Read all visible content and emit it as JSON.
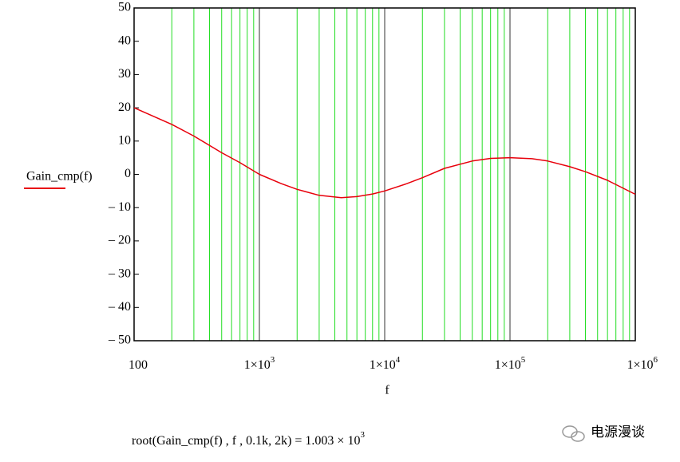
{
  "chart_data": {
    "type": "line",
    "log_x": true,
    "grid": true,
    "xlabel": "f",
    "x": [
      100,
      200,
      300,
      500,
      700,
      1000,
      1500,
      2000,
      3000,
      4500,
      6000,
      8000,
      10000,
      15000,
      20000,
      30000,
      50000,
      70000,
      100000,
      150000,
      200000,
      300000,
      400000,
      600000,
      1000000
    ],
    "series": [
      {
        "name": "Gain_cmp(f)",
        "color": "#e8000b",
        "values": [
          20,
          15,
          11.5,
          6.5,
          3.5,
          0,
          -2.8,
          -4.5,
          -6.3,
          -7,
          -6.7,
          -5.9,
          -5,
          -2.8,
          -1,
          1.8,
          4,
          4.8,
          5,
          4.7,
          4,
          2.3,
          0.8,
          -1.8,
          -6
        ]
      }
    ],
    "xlim": [
      100,
      1000000
    ],
    "xticks": [
      100,
      {
        "value": 1000,
        "label": "1×10",
        "exponent": "3"
      },
      {
        "value": 10000,
        "label": "1×10",
        "exponent": "4"
      },
      {
        "value": 100000,
        "label": "1×10",
        "exponent": "5"
      },
      {
        "value": 1000000,
        "label": "1×10",
        "exponent": "6"
      }
    ],
    "x_minor_grid": [
      200,
      300,
      400,
      500,
      600,
      700,
      800,
      900,
      2000,
      3000,
      4000,
      5000,
      6000,
      7000,
      8000,
      9000,
      20000,
      30000,
      40000,
      50000,
      60000,
      70000,
      80000,
      90000,
      200000,
      300000,
      400000,
      500000,
      600000,
      700000,
      800000,
      900000
    ],
    "ylim": [
      -50,
      50
    ],
    "yticks": [
      {
        "value": -50,
        "label": "– 50"
      },
      {
        "value": -40,
        "label": "– 40"
      },
      {
        "value": -30,
        "label": "– 30"
      },
      {
        "value": -20,
        "label": "– 20"
      },
      {
        "value": -10,
        "label": "– 10"
      },
      0,
      10,
      20,
      30,
      40,
      50
    ],
    "annotation": {
      "text": "root(Gain_cmp(f) , f , 0.1k, 2k) = 1.003 × 10",
      "exponent": "3"
    },
    "watermark": "电源漫谈"
  }
}
